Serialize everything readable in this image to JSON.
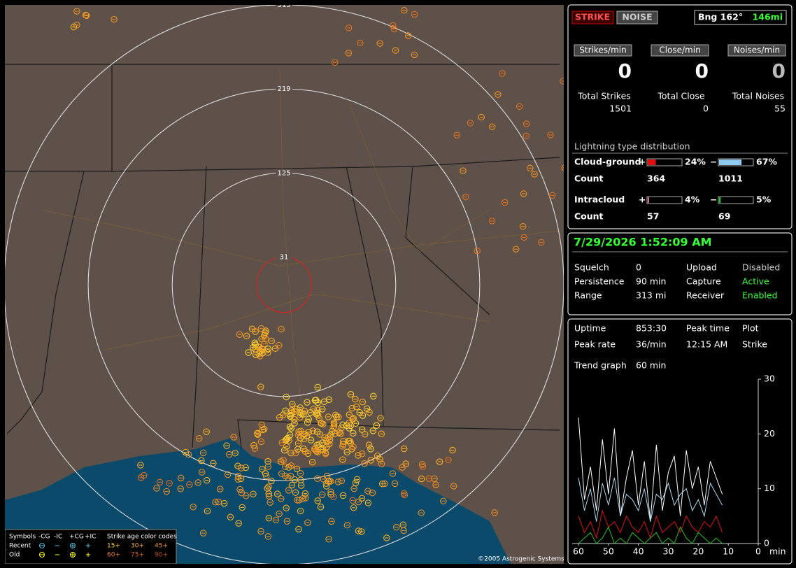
{
  "map": {
    "range_rings": [
      313,
      219,
      125,
      31
    ],
    "copyright": "©2005 Astrogenic Systems",
    "legend": {
      "symbols_label": "Symbols",
      "types": [
        "-CG",
        "-IC",
        "+CG",
        "+IC"
      ],
      "age_title": "Strike age color codes",
      "rows": [
        {
          "label": "Recent",
          "ages": [
            "15+",
            "30+",
            "45+"
          ]
        },
        {
          "label": "Old",
          "ages": [
            "60+",
            "75+",
            "90+"
          ]
        }
      ]
    }
  },
  "header": {
    "strike_button": "STRIKE",
    "noise_button": "NOISE",
    "bearing": "Bng 162°",
    "distance": "146mi"
  },
  "rates": [
    {
      "label": "Strikes/min",
      "value": 0
    },
    {
      "label": "Close/min",
      "value": 0
    },
    {
      "label": "Noises/min",
      "value": 0
    }
  ],
  "totals": [
    {
      "label": "Total Strikes",
      "value": 1501
    },
    {
      "label": "Total Close",
      "value": 0
    },
    {
      "label": "Total Noises",
      "value": 55
    }
  ],
  "distribution": {
    "title": "Lightning type distribution",
    "count_label": "Count",
    "rows": [
      {
        "name": "Cloud-ground",
        "pos": {
          "sign": "+",
          "percent": 24,
          "percent_label": "24%",
          "count": 364,
          "color": "#e01010"
        },
        "neg": {
          "sign": "−",
          "percent": 67,
          "percent_label": "67%",
          "count": 1011,
          "color": "#8ec8ee"
        }
      },
      {
        "name": "Intracloud",
        "pos": {
          "sign": "+",
          "percent": 4,
          "percent_label": "4%",
          "count": 57,
          "color": "#e070a0"
        },
        "neg": {
          "sign": "−",
          "percent": 5,
          "percent_label": "5%",
          "count": 69,
          "color": "#20c020"
        }
      }
    ]
  },
  "status": {
    "datetime": "7/29/2026 1:52:09 AM",
    "rows": [
      [
        "Squelch",
        "0",
        "Upload",
        "Disabled"
      ],
      [
        "Persistence",
        "90 min",
        "Capture",
        "Active"
      ],
      [
        "Range",
        "313 mi",
        "Receiver",
        "Enabled"
      ]
    ]
  },
  "stats": {
    "rows": [
      [
        "Uptime",
        "853:30",
        "Peak time",
        "Plot"
      ],
      [
        "Peak rate",
        "36/min",
        "12:15 AM",
        "Strike"
      ]
    ],
    "trend_label": "Trend graph",
    "trend_window": "60 min"
  },
  "trend_graph": {
    "type": "line",
    "x": [
      60,
      58,
      56,
      54,
      52,
      50,
      48,
      46,
      44,
      42,
      40,
      38,
      36,
      34,
      32,
      30,
      28,
      26,
      24,
      22,
      20,
      18,
      16,
      14,
      12
    ],
    "xlim": [
      60,
      0
    ],
    "xticks": [
      60,
      50,
      40,
      30,
      20,
      10,
      0
    ],
    "x_unit": "min",
    "ylim": [
      0,
      30
    ],
    "yticks": [
      0,
      10,
      20,
      30
    ],
    "series": [
      {
        "color": "#ffffff",
        "values": [
          23,
          8,
          14,
          6,
          19,
          9,
          21,
          5,
          12,
          17,
          7,
          15,
          4,
          18,
          6,
          13,
          16,
          5,
          17,
          10,
          14,
          7,
          15,
          12,
          9
        ]
      },
      {
        "color": "#a8d8f0",
        "values": [
          12,
          6,
          10,
          4,
          11,
          7,
          12,
          5,
          9,
          8,
          6,
          10,
          4,
          9,
          8,
          11,
          7,
          9,
          10,
          6,
          8,
          5,
          11,
          9,
          7
        ]
      },
      {
        "color": "#e01010",
        "values": [
          5,
          2,
          4,
          1,
          6,
          3,
          4,
          2,
          5,
          3,
          2,
          4,
          1,
          5,
          2,
          3,
          4,
          2,
          5,
          3,
          2,
          4,
          3,
          5,
          2
        ]
      },
      {
        "color": "#20c020",
        "values": [
          0,
          1,
          2,
          0,
          1,
          3,
          0,
          1,
          0,
          2,
          1,
          0,
          1,
          2,
          0,
          1,
          0,
          3,
          1,
          0,
          2,
          1,
          0,
          1,
          0
        ]
      }
    ]
  }
}
